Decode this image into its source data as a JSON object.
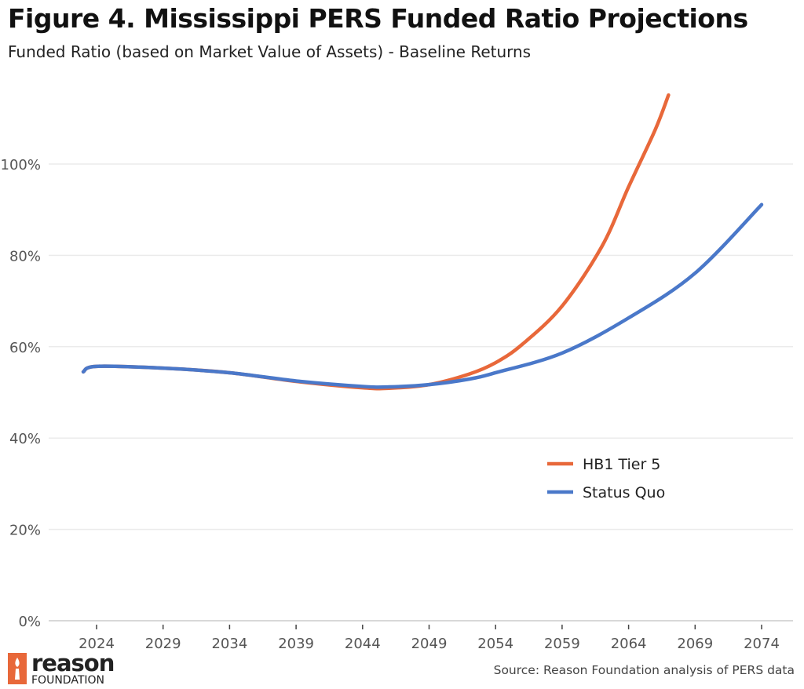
{
  "chart_data": {
    "type": "line",
    "title": "Figure 4. Mississippi PERS Funded Ratio Projections",
    "subtitle": "Funded Ratio (based on Market Value of Assets) - Baseline Returns",
    "source": "Source: Reason Foundation analysis of PERS data",
    "xlim": [
      2020.5,
      2076
    ],
    "ylim": [
      0,
      118
    ],
    "x_ticks": [
      2024,
      2029,
      2034,
      2039,
      2044,
      2049,
      2054,
      2059,
      2064,
      2069,
      2074
    ],
    "y_ticks": [
      0,
      20,
      40,
      60,
      80,
      100
    ],
    "y_tick_labels": [
      "0%",
      "20%",
      "40%",
      "60%",
      "80%",
      "100%"
    ],
    "grid": "horizontal",
    "legend_placement": "bottom-right",
    "series": [
      {
        "name": "HB1 Tier 5",
        "color": "#e8683a",
        "x": [
          2023,
          2024,
          2029,
          2034,
          2039,
          2044,
          2046,
          2049,
          2052,
          2054,
          2056,
          2059,
          2062,
          2064,
          2066,
          2067
        ],
        "y": [
          54.5,
          55.7,
          55.3,
          54.3,
          52.4,
          51.0,
          50.9,
          51.7,
          54.0,
          56.5,
          60.5,
          68.9,
          82.0,
          95.0,
          107.5,
          115.1
        ]
      },
      {
        "name": "Status Quo",
        "color": "#4a78c9",
        "x": [
          2023,
          2024,
          2029,
          2034,
          2039,
          2044,
          2046,
          2049,
          2052,
          2054,
          2059,
          2064,
          2069,
          2074
        ],
        "y": [
          54.5,
          55.7,
          55.3,
          54.3,
          52.5,
          51.3,
          51.2,
          51.7,
          52.9,
          54.3,
          58.6,
          66.3,
          76.1,
          91.1
        ]
      }
    ]
  },
  "logo": {
    "text_top": "reason",
    "text_bottom": "FOUNDATION",
    "color": "#e8683a"
  }
}
